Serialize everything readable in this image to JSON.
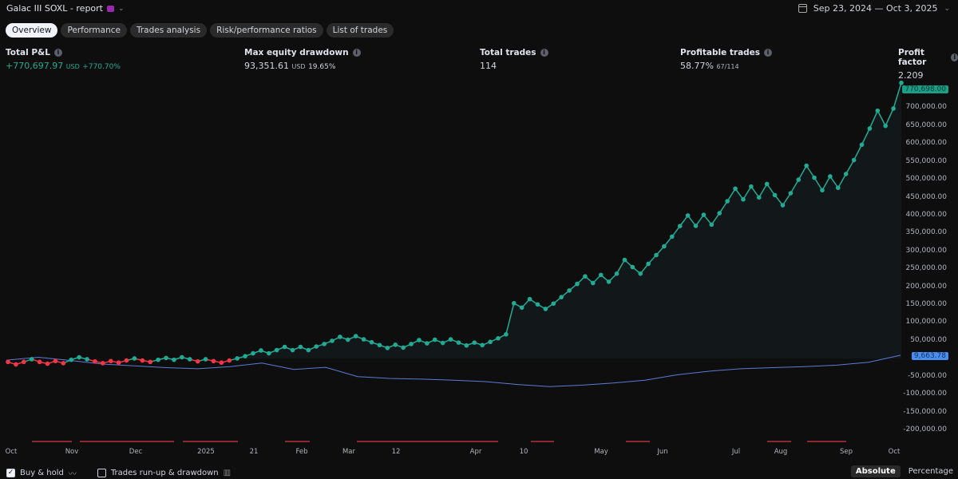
{
  "header": {
    "title": "Galac III SOXL - report",
    "date_range": "Sep 23, 2024 — Oct 3, 2025"
  },
  "tabs": [
    "Overview",
    "Performance",
    "Trades analysis",
    "Risk/performance ratios",
    "List of trades"
  ],
  "stats": {
    "total_pnl": {
      "label": "Total P&L",
      "value": "+770,697.97",
      "unit": "USD",
      "pct": "+770.70%"
    },
    "max_dd": {
      "label": "Max equity drawdown",
      "value": "93,351.61",
      "unit": "USD",
      "pct": "19.65%"
    },
    "total_trades": {
      "label": "Total trades",
      "value": "114"
    },
    "profitable": {
      "label": "Profitable trades",
      "value": "58.77%",
      "sub": "67/114"
    },
    "profit_factor": {
      "label": "Profit factor",
      "value": "2.209"
    }
  },
  "footer": {
    "buy_hold": "Buy & hold",
    "runup": "Trades run-up & drawdown",
    "absolute": "Absolute",
    "percentage": "Percentage"
  },
  "chart_data": {
    "type": "line",
    "y_unit": "USD (thousands)",
    "ylim": [
      -200,
      770.7
    ],
    "y_ticks": [
      "750,000.00",
      "700,000.00",
      "650,000.00",
      "600,000.00",
      "550,000.00",
      "500,000.00",
      "450,000.00",
      "400,000.00",
      "350,000.00",
      "300,000.00",
      "250,000.00",
      "200,000.00",
      "150,000.00",
      "100,000.00",
      "50,000.00",
      "-50,000.00",
      "-100,000.00",
      "-150,000.00",
      "-200,000.00"
    ],
    "x_ticks": [
      "Oct",
      "Nov",
      "Dec",
      "2025",
      "21",
      "Feb",
      "Mar",
      "12",
      "Apr",
      "10",
      "May",
      "Jun",
      "Jul",
      "Aug",
      "Sep",
      "Oct"
    ],
    "equity_label": "770,698.00",
    "buy_hold_label": "9,663.78",
    "colors": {
      "profit": "#22ab94",
      "loss": "#f23645",
      "buy_hold": "#5b7bd5"
    },
    "equity": [
      -9,
      -16,
      -9,
      -1.5,
      -9,
      -14,
      -6.7,
      -12.6,
      -3,
      4,
      -1.5,
      -7.5,
      -12.6,
      -6.7,
      -11,
      -5,
      0.7,
      -5,
      -9,
      -3,
      2,
      -3,
      4,
      -1.5,
      -7.5,
      -1.5,
      -6.7,
      -11,
      -5,
      0.7,
      7,
      15,
      23,
      15,
      24,
      33,
      24,
      33,
      24,
      34,
      41,
      50,
      61,
      53,
      63,
      54,
      46,
      38,
      30,
      39,
      31,
      41,
      52,
      43,
      53,
      44,
      54,
      45,
      37,
      45,
      38,
      47,
      57,
      68,
      155,
      142.7,
      166.5,
      151.6,
      139,
      154,
      172,
      190.5,
      209,
      230,
      211.5,
      234,
      215,
      237.5,
      276,
      256,
      237.5,
      265,
      289.5,
      314,
      341,
      370.6,
      400,
      371,
      402,
      374.5,
      406.5,
      440,
      475,
      445,
      481,
      450.5,
      488,
      457,
      428.8,
      462.3,
      500,
      539,
      505.6,
      470.7,
      509.3,
      477.4,
      516,
      554.7,
      597.8,
      643,
      692.8,
      650.5,
      698.8,
      770.7
    ],
    "buy_hold": [
      -4,
      4,
      -5,
      -15,
      -20,
      -25,
      -28,
      -22,
      -12,
      -30,
      -24,
      -50,
      -55,
      -57,
      -60,
      -64,
      -72,
      -78,
      -74,
      -68,
      -60,
      -45,
      -35,
      -28,
      -25,
      -22,
      -18,
      -10,
      9.66
    ]
  }
}
